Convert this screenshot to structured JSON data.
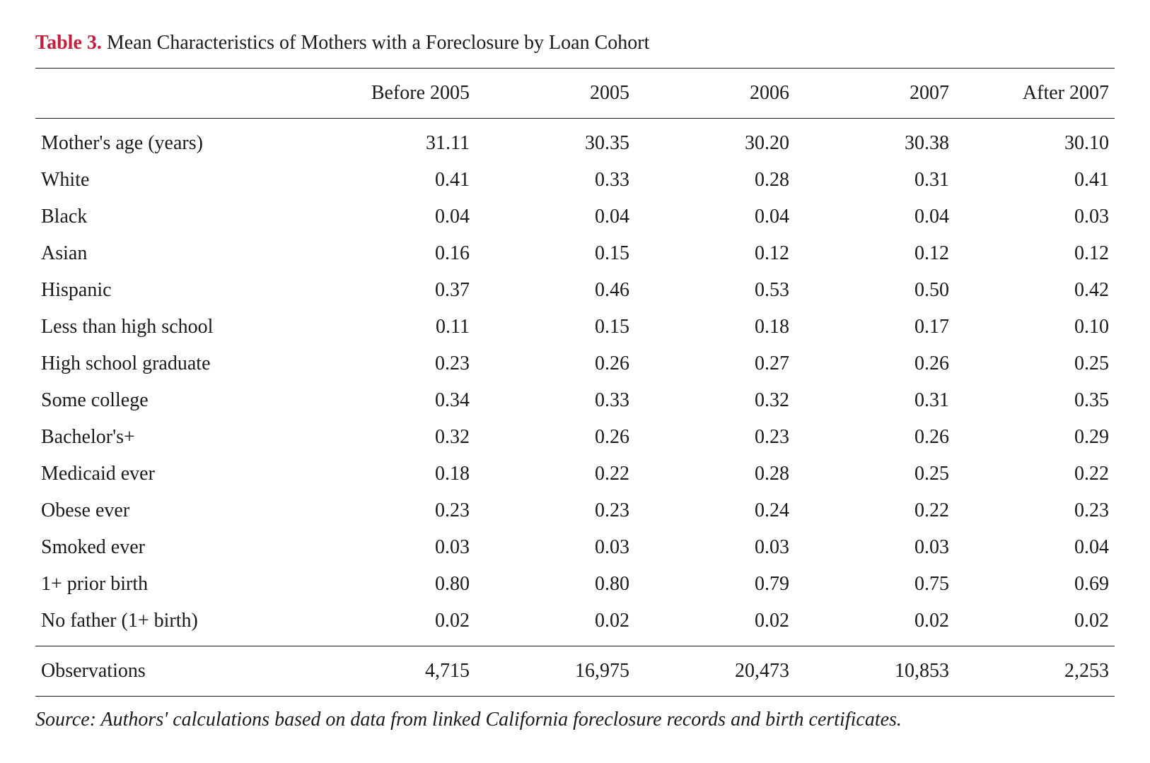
{
  "table": {
    "label": "Table 3.",
    "caption": "Mean Characteristics of Mothers with a Foreclosure by Loan Cohort",
    "label_color": "#c41e3a",
    "text_color": "#1a1a1a",
    "font_size_pt": 21,
    "background_color": "#ffffff",
    "border_color": "#1a1a1a",
    "columns": [
      "Before 2005",
      "2005",
      "2006",
      "2007",
      "After 2007"
    ],
    "rows": [
      {
        "label": "Mother's age (years)",
        "values": [
          "31.11",
          "30.35",
          "30.20",
          "30.38",
          "30.10"
        ]
      },
      {
        "label": "White",
        "values": [
          "0.41",
          "0.33",
          "0.28",
          "0.31",
          "0.41"
        ]
      },
      {
        "label": "Black",
        "values": [
          "0.04",
          "0.04",
          "0.04",
          "0.04",
          "0.03"
        ]
      },
      {
        "label": "Asian",
        "values": [
          "0.16",
          "0.15",
          "0.12",
          "0.12",
          "0.12"
        ]
      },
      {
        "label": "Hispanic",
        "values": [
          "0.37",
          "0.46",
          "0.53",
          "0.50",
          "0.42"
        ]
      },
      {
        "label": "Less than high school",
        "values": [
          "0.11",
          "0.15",
          "0.18",
          "0.17",
          "0.10"
        ]
      },
      {
        "label": "High school graduate",
        "values": [
          "0.23",
          "0.26",
          "0.27",
          "0.26",
          "0.25"
        ]
      },
      {
        "label": "Some college",
        "values": [
          "0.34",
          "0.33",
          "0.32",
          "0.31",
          "0.35"
        ]
      },
      {
        "label": "Bachelor's+",
        "values": [
          "0.32",
          "0.26",
          "0.23",
          "0.26",
          "0.29"
        ]
      },
      {
        "label": "Medicaid ever",
        "values": [
          "0.18",
          "0.22",
          "0.28",
          "0.25",
          "0.22"
        ]
      },
      {
        "label": "Obese ever",
        "values": [
          "0.23",
          "0.23",
          "0.24",
          "0.22",
          "0.23"
        ]
      },
      {
        "label": "Smoked ever",
        "values": [
          "0.03",
          "0.03",
          "0.03",
          "0.03",
          "0.04"
        ]
      },
      {
        "label": "1+ prior birth",
        "values": [
          "0.80",
          "0.80",
          "0.79",
          "0.75",
          "0.69"
        ]
      },
      {
        "label": "No father (1+ birth)",
        "values": [
          "0.02",
          "0.02",
          "0.02",
          "0.02",
          "0.02"
        ]
      }
    ],
    "observations": {
      "label": "Observations",
      "values": [
        "4,715",
        "16,975",
        "20,473",
        "10,853",
        "2,253"
      ]
    },
    "source": {
      "label": "Source:",
      "text": "Authors' calculations based on data from linked California foreclosure records and birth certificates."
    }
  }
}
